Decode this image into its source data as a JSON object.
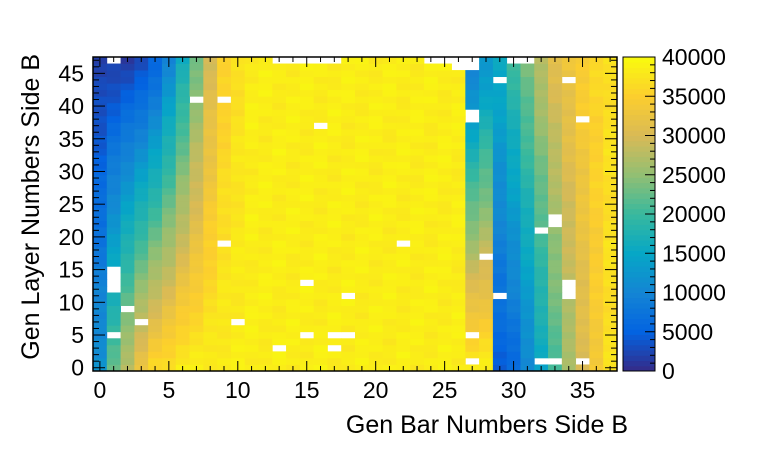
{
  "chart_data": {
    "type": "heatmap",
    "title": "",
    "xlabel": "Gen Bar Numbers Side B",
    "ylabel": "Gen Layer Numbers Side B",
    "xlim": [
      -0.5,
      37.5
    ],
    "ylim": [
      -0.5,
      47.5
    ],
    "x_bins": 38,
    "y_bins": 48,
    "x_ticks": [
      0,
      5,
      10,
      15,
      20,
      25,
      30,
      35
    ],
    "y_ticks": [
      0,
      5,
      10,
      15,
      20,
      25,
      30,
      35,
      40,
      45
    ],
    "colorbar": {
      "min": 0,
      "max": 40000,
      "ticks": [
        0,
        5000,
        10000,
        15000,
        20000,
        25000,
        30000,
        35000,
        40000
      ],
      "tick_labels": [
        "0",
        "5000",
        "10000",
        "15000",
        "20000",
        "25000",
        "30000",
        "35000",
        "40000"
      ],
      "palette": [
        "#352a87",
        "#0363e1",
        "#1485d4",
        "#06a7c6",
        "#38b99e",
        "#92bf73",
        "#d9ba56",
        "#fcce2e",
        "#f9fb0e"
      ]
    },
    "grid": false,
    "value_model": {
      "description": "Approximate bin contents; counts rise from left and right edges toward the centre (~37000-40000 plateau).",
      "left_edge_at_layer_0": [
        12000,
        22000,
        28000,
        33000,
        36000,
        37000
      ],
      "left_edge_at_layer_47": [
        1500,
        1500,
        1800,
        2500,
        5000,
        10000,
        16000,
        23000,
        30000,
        35000,
        37000
      ],
      "right_edge_at_layer_0": [
        37000,
        34000,
        30000,
        26000,
        21000,
        15000,
        10000,
        6000,
        4500
      ],
      "right_edge_at_layer_47": [
        37000,
        36000,
        35000,
        33000,
        31000,
        28000,
        24000,
        20000,
        16000,
        12000,
        8000
      ],
      "plateau": 38500
    },
    "empty_bins": [
      [
        1,
        47
      ],
      [
        13,
        47
      ],
      [
        14,
        47
      ],
      [
        15,
        47
      ],
      [
        16,
        47
      ],
      [
        17,
        47
      ],
      [
        24,
        47
      ],
      [
        25,
        47
      ],
      [
        26,
        47
      ],
      [
        27,
        47
      ],
      [
        30,
        47
      ],
      [
        31,
        47
      ],
      [
        26,
        46
      ],
      [
        27,
        46
      ],
      [
        29,
        44
      ],
      [
        34,
        44
      ],
      [
        7,
        41
      ],
      [
        9,
        41
      ],
      [
        27,
        39
      ],
      [
        27,
        38
      ],
      [
        35,
        38
      ],
      [
        16,
        37
      ],
      [
        33,
        23
      ],
      [
        33,
        22
      ],
      [
        32,
        21
      ],
      [
        9,
        19
      ],
      [
        22,
        19
      ],
      [
        28,
        17
      ],
      [
        1,
        15
      ],
      [
        1,
        14
      ],
      [
        1,
        13
      ],
      [
        1,
        12
      ],
      [
        15,
        13
      ],
      [
        34,
        13
      ],
      [
        34,
        12
      ],
      [
        34,
        11
      ],
      [
        18,
        11
      ],
      [
        29,
        11
      ],
      [
        2,
        9
      ],
      [
        3,
        7
      ],
      [
        10,
        7
      ],
      [
        1,
        5
      ],
      [
        15,
        5
      ],
      [
        17,
        5
      ],
      [
        18,
        5
      ],
      [
        27,
        5
      ],
      [
        13,
        3
      ],
      [
        17,
        3
      ],
      [
        27,
        1
      ],
      [
        32,
        1
      ],
      [
        33,
        1
      ],
      [
        35,
        1
      ]
    ]
  }
}
